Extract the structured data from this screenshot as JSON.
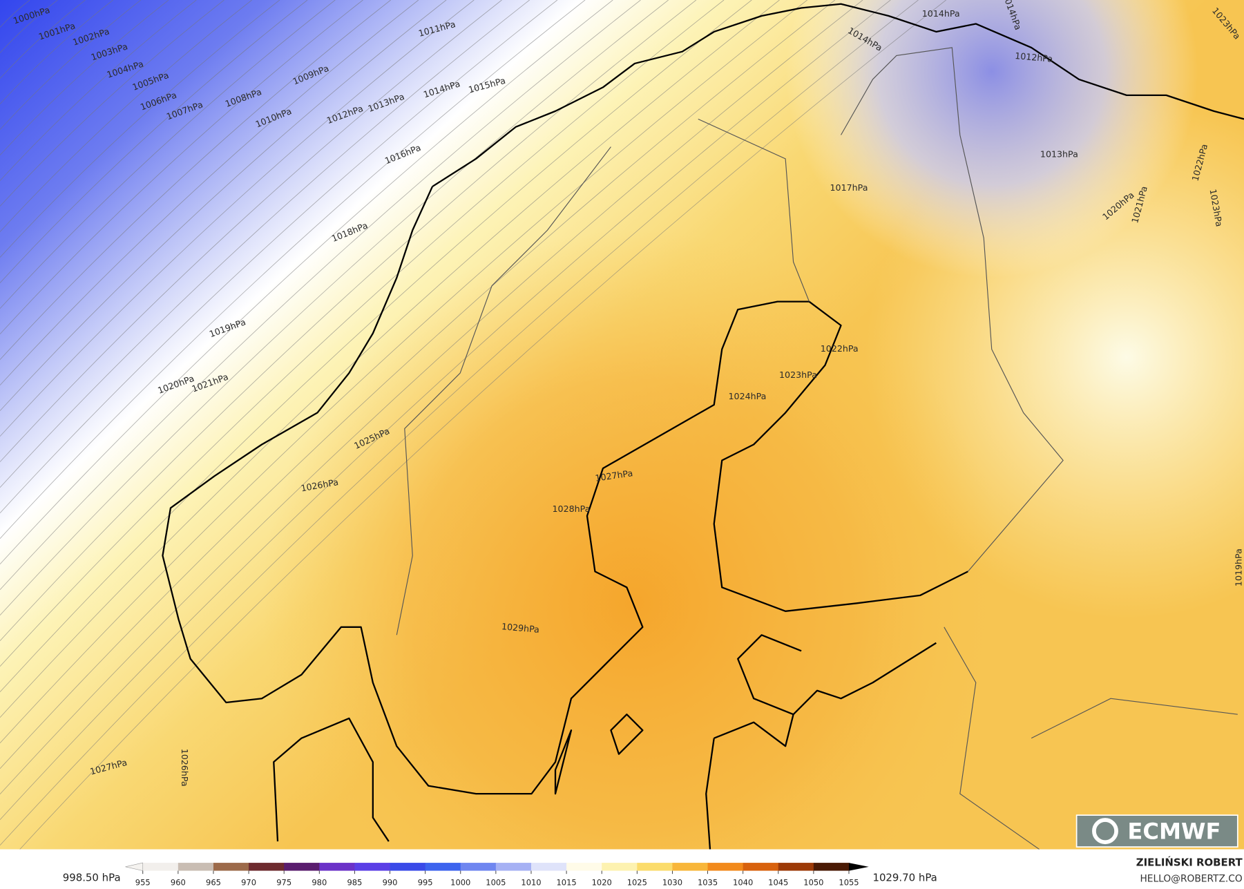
{
  "isobar_labels": [
    "1000hPa",
    "1001hPa",
    "1002hPa",
    "1003hPa",
    "1004hPa",
    "1005hPa",
    "1006hPa",
    "1007hPa",
    "1008hPa",
    "1009hPa",
    "1010hPa",
    "1011hPa",
    "1012hPa",
    "1013hPa",
    "1014hPa",
    "1015hPa",
    "1016hPa",
    "1018hPa",
    "1019hPa",
    "1020hPa",
    "1021hPa",
    "1025hPa",
    "1026hPa",
    "1027hPa",
    "1028hPa",
    "1029hPa",
    "1017hPa",
    "1022hPa",
    "1023hPa",
    "1024hPa",
    "1013hPa",
    "1012hPa",
    "1014hPa",
    "1014hPa",
    "1014hPa",
    "1023hPa",
    "1022hPa",
    "1020hPa",
    "1021hPa",
    "1023hPa",
    "1019hPa",
    "1027hPa",
    "1026hPa"
  ],
  "colorbar": {
    "ticks": [
      955,
      960,
      965,
      970,
      975,
      980,
      985,
      990,
      995,
      1000,
      1005,
      1010,
      1015,
      1020,
      1025,
      1030,
      1035,
      1040,
      1045,
      1050,
      1055
    ],
    "min_label": "998.50 hPa",
    "max_label": "1029.70 hPa"
  },
  "credit": {
    "author": "ZIELIŃSKI ROBERT",
    "contact": "HELLO@ROBERTZ.CO"
  },
  "logo": "ECMWF"
}
